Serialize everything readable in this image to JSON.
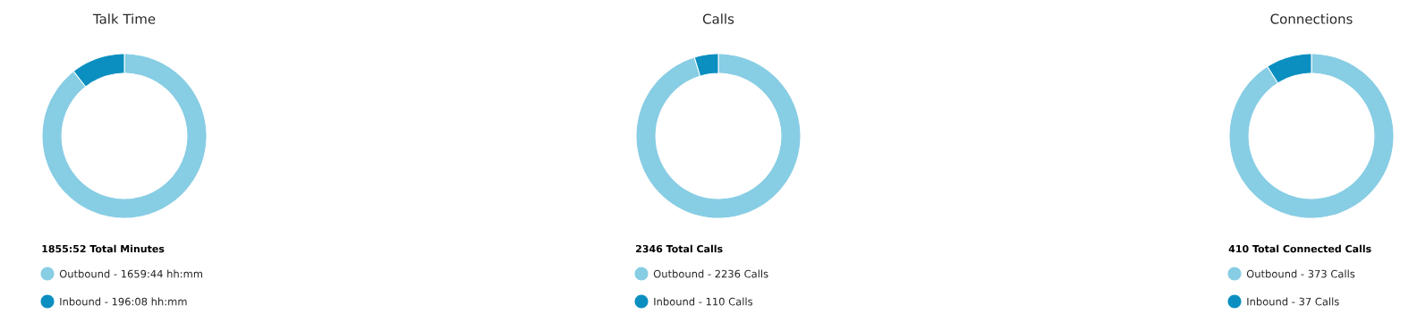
{
  "chart_data": [
    {
      "type": "donut",
      "title": "Talk Time",
      "categories": [
        "Outbound - 1659:44 hh:mm",
        "Inbound - 196:08 hh:mm"
      ],
      "values": [
        89.4,
        10.6
      ],
      "colors": [
        "#87cde4",
        "#0a8fc0"
      ],
      "annotations": [
        "**1855:52 Total Minutes**"
      ],
      "legend": "bottom"
    },
    {
      "type": "donut",
      "title": "Calls",
      "categories": [
        "Outbound - 2236 Calls",
        "Inbound - 110 Calls"
      ],
      "values": [
        95.3,
        4.7
      ],
      "colors": [
        "#87cde4",
        "#0a8fc0"
      ],
      "annotations": [
        "**2346 Total Calls**"
      ],
      "legend": "bottom"
    },
    {
      "type": "donut",
      "title": "Connections",
      "categories": [
        "Outbound - 373 Calls",
        "Inbound - 37 Calls"
      ],
      "values": [
        91.0,
        9.0
      ],
      "colors": [
        "#87cde4",
        "#0a8fc0"
      ],
      "annotations": [
        "**410 Total Connected Calls**"
      ],
      "legend": "bottom"
    }
  ]
}
